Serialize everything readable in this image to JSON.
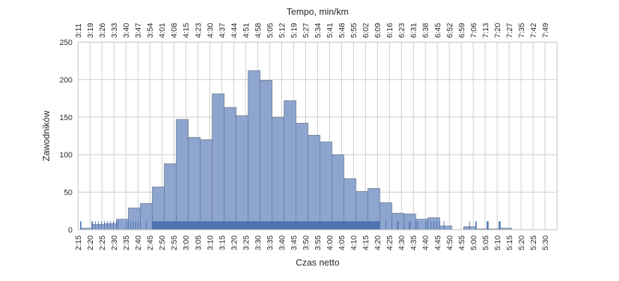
{
  "chart_data": {
    "type": "bar",
    "title": "",
    "xlabel": "Czas netto",
    "ylabel": "Zawodników",
    "top_xlabel": "Tempo, min/km",
    "ylim": [
      0,
      250
    ],
    "xlim_minutes": [
      135,
      335
    ],
    "grid": true,
    "legend": "none",
    "colors": {
      "bars": "#8da5cf",
      "bar_edge": "#6e7a8c",
      "rug": "#4c72b0",
      "grid": "#cccccc",
      "frame": "#bfbfbf"
    },
    "bin_edges": [
      "2:16",
      "2:21",
      "2:26",
      "2:31",
      "2:36",
      "2:41",
      "2:46",
      "2:51",
      "2:56",
      "3:01",
      "3:06",
      "3:11",
      "3:16",
      "3:21",
      "3:26",
      "3:31",
      "3:36",
      "3:41",
      "3:46",
      "3:51",
      "3:56",
      "4:01",
      "4:06",
      "4:11",
      "4:16",
      "4:21",
      "4:26",
      "4:31",
      "4:36",
      "4:41",
      "4:46",
      "4:51",
      "4:56",
      "5:01",
      "5:06",
      "5:11",
      "5:16"
    ],
    "values": [
      2,
      7,
      8,
      14,
      29,
      35,
      57,
      88,
      147,
      123,
      120,
      181,
      163,
      152,
      212,
      199,
      150,
      172,
      142,
      126,
      117,
      100,
      68,
      51,
      55,
      36,
      22,
      21,
      14,
      16,
      5,
      0,
      4,
      1,
      1,
      2
    ],
    "x_ticks": [
      "2:15",
      "2:20",
      "2:25",
      "2:30",
      "2:35",
      "2:40",
      "2:45",
      "2:50",
      "2:55",
      "3:00",
      "3:05",
      "3:10",
      "3:15",
      "3:20",
      "3:25",
      "3:30",
      "3:35",
      "3:40",
      "3:45",
      "3:50",
      "3:55",
      "4:00",
      "4:05",
      "4:10",
      "4:15",
      "4:20",
      "4:25",
      "4:30",
      "4:35",
      "4:40",
      "4:45",
      "4:50",
      "4:55",
      "5:00",
      "5:05",
      "5:10",
      "5:15",
      "5:20",
      "5:25",
      "5:30"
    ],
    "top_ticks": [
      "3:11",
      "3:19",
      "3:26",
      "3:33",
      "3:40",
      "3:47",
      "3:54",
      "4:01",
      "4:08",
      "4:15",
      "4:23",
      "4:30",
      "4:37",
      "4:44",
      "4:51",
      "4:58",
      "5:05",
      "5:12",
      "5:19",
      "5:27",
      "5:34",
      "5:41",
      "5:48",
      "5:55",
      "6:02",
      "6:09",
      "6:16",
      "6:23",
      "6:31",
      "6:38",
      "6:45",
      "6:52",
      "6:59",
      "7:06",
      "7:13",
      "7:20",
      "7:27",
      "7:35",
      "7:42",
      "7:49"
    ],
    "y_ticks": [
      "0",
      "50",
      "100",
      "150",
      "200",
      "250"
    ],
    "rug_range": [
      "2:16",
      "5:15"
    ],
    "rug_gap": [
      "4:49",
      "4:57"
    ]
  }
}
